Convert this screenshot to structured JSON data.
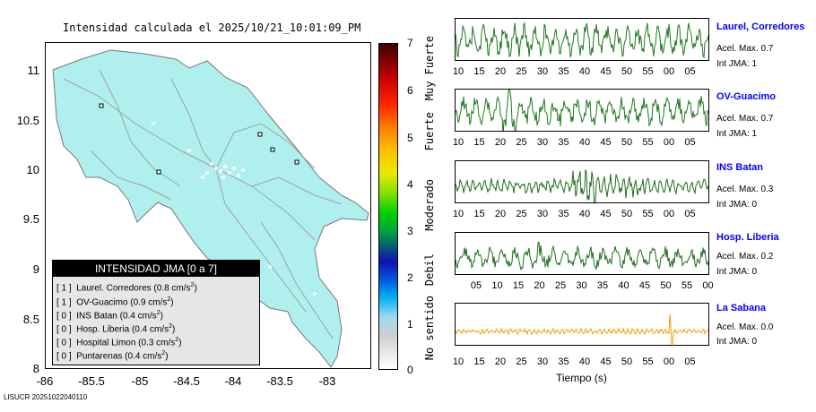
{
  "map": {
    "title": "Intensidad calculada el 2025/10/21_10:01:09_PM",
    "y_ticks": [
      "11",
      "10.5",
      "10",
      "9.5",
      "9",
      "8.5",
      "8"
    ],
    "x_ticks": [
      "-86",
      "-85.5",
      "-85",
      "-84.5",
      "-84",
      "-83.5",
      "-83"
    ]
  },
  "legend": {
    "title": "INTENSIDAD JMA [0 a 7]",
    "rows": [
      {
        "int": "[ 1 ]",
        "name": "Laurel. Corredores (0.8 cm/s",
        "unit_tail": ")"
      },
      {
        "int": "[ 1 ]",
        "name": "OV-Guacimo (0.9 cm/s",
        "unit_tail": ")"
      },
      {
        "int": "[ 0 ]",
        "name": "INS Batan (0.4 cm/s",
        "unit_tail": ")"
      },
      {
        "int": "[ 0 ]",
        "name": "Hosp. Liberia (0.4 cm/s",
        "unit_tail": ")"
      },
      {
        "int": "[ 0 ]",
        "name": "Hospital Limon (0.3 cm/s",
        "unit_tail": ")"
      },
      {
        "int": "[ 0 ]",
        "name": "Puntarenas (0.4 cm/s",
        "unit_tail": ")"
      }
    ],
    "sup": "2"
  },
  "colorbar": {
    "ticks": [
      "7",
      "6",
      "5",
      "4",
      "3",
      "2",
      "1",
      "0"
    ],
    "labels": [
      "Muy Fuerte",
      "Fuerte",
      "Moderado",
      "Debil",
      "No sentido"
    ]
  },
  "traces": [
    {
      "name": "Laurel, Corredores",
      "acel": "Acel. Max. 0.7",
      "int": "Int JMA: 1",
      "color": "#1e7a1e",
      "ticks": [
        "10",
        "15",
        "20",
        "25",
        "30",
        "35",
        "40",
        "45",
        "50",
        "55",
        "00",
        "05"
      ]
    },
    {
      "name": "OV-Guacimo",
      "acel": "Acel. Max. 0.7",
      "int": "Int JMA: 1",
      "color": "#1e7a1e",
      "ticks": [
        "10",
        "15",
        "20",
        "25",
        "30",
        "35",
        "40",
        "45",
        "50",
        "55",
        "00",
        "05"
      ]
    },
    {
      "name": "INS Batan",
      "acel": "Acel. Max. 0.3",
      "int": "Int JMA: 0",
      "color": "#1e6e1e",
      "ticks": [
        "10",
        "15",
        "20",
        "25",
        "30",
        "35",
        "40",
        "45",
        "50",
        "55",
        "00",
        "05"
      ]
    },
    {
      "name": "Hosp. Liberia",
      "acel": "Acel. Max. 0.2",
      "int": "Int JMA: 0",
      "color": "#1e6e1e",
      "ticks": [
        "05",
        "10",
        "15",
        "20",
        "25",
        "30",
        "35",
        "40",
        "45",
        "50",
        "55",
        "00"
      ]
    },
    {
      "name": "La Sabana",
      "acel": "Acel. Max. 0.0",
      "int": "Int JMA: 0",
      "color": "#f0a000",
      "ticks": [
        "10",
        "15",
        "20",
        "25",
        "30",
        "35",
        "40",
        "45",
        "50",
        "55",
        "00",
        "05"
      ]
    }
  ],
  "time_label": "Tiempo (s)",
  "footer": "LISUCR 20251022040110"
}
